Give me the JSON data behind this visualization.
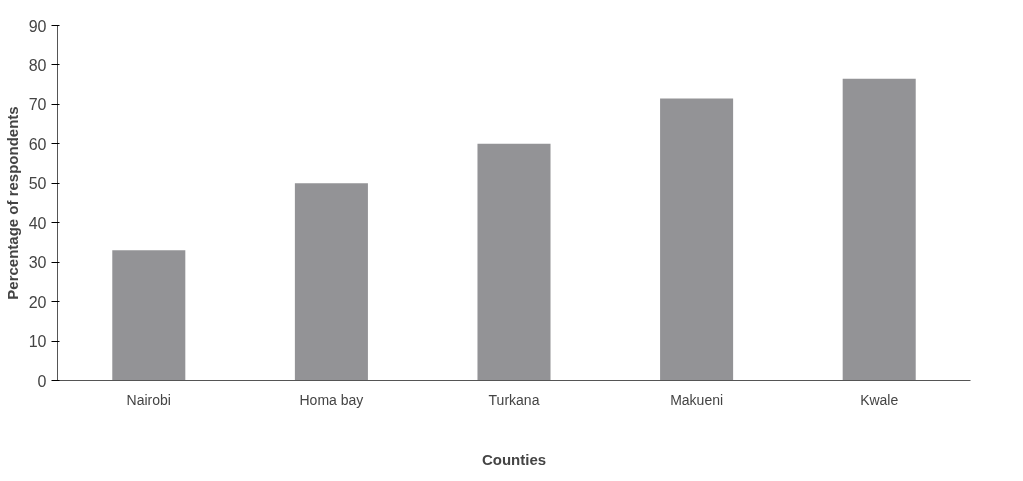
{
  "chart_data": {
    "type": "bar",
    "xlabel": "Counties",
    "ylabel": "Percentage of respondents",
    "categories": [
      "Nairobi",
      "Homa bay",
      "Turkana",
      "Makueni",
      "Kwale"
    ],
    "values": [
      33,
      50,
      60,
      71.5,
      76.5
    ],
    "color": "#939396",
    "ylim": [
      0,
      90
    ],
    "yticks": [
      0,
      10,
      20,
      30,
      40,
      50,
      60,
      70,
      80,
      90
    ],
    "grid": false
  }
}
